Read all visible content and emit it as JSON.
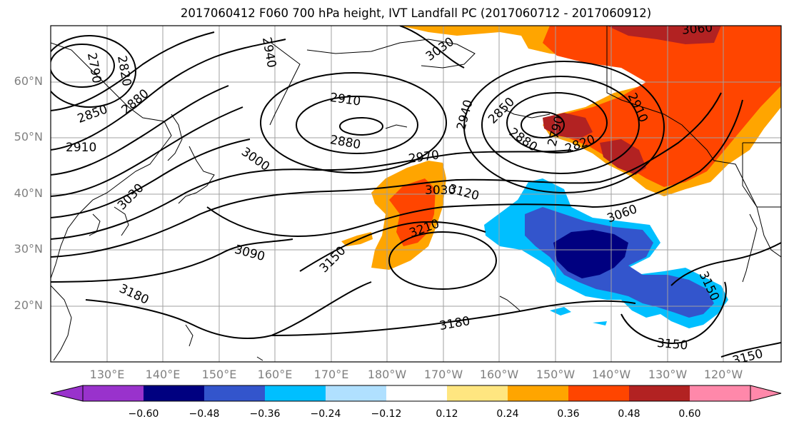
{
  "title": "2017060412 F060 700 hPa height, IVT Landfall PC (2017060712 - 2017060912)",
  "lat_labels": [
    "60°N",
    "50°N",
    "40°N",
    "30°N",
    "20°N"
  ],
  "lon_labels": [
    "130°E",
    "140°E",
    "150°E",
    "160°E",
    "170°E",
    "180°W",
    "170°W",
    "160°W",
    "150°W",
    "140°W",
    "130°W",
    "120°W"
  ],
  "contour_labels": [
    "2790",
    "2820",
    "2880",
    "2850",
    "2910",
    "3030",
    "2940",
    "3030",
    "3060",
    "2910",
    "2880",
    "3000",
    "2970",
    "3030",
    "3120",
    "3210",
    "3150",
    "3090",
    "3180",
    "2940",
    "2850",
    "2790",
    "2820",
    "2880",
    "2910",
    "3060",
    "3180",
    "3150",
    "3150",
    "3150"
  ],
  "colorbar": {
    "ticks": [
      "−0.60",
      "−0.48",
      "−0.36",
      "−0.24",
      "−0.12",
      "0.12",
      "0.24",
      "0.36",
      "0.48",
      "0.60"
    ],
    "colors": [
      "#9932cc",
      "#000080",
      "#3355cc",
      "#00bfff",
      "#b0e0ff",
      "#ffffff",
      "#ffe680",
      "#ffa500",
      "#ff4500",
      "#b22222",
      "#ff88aa"
    ]
  }
}
